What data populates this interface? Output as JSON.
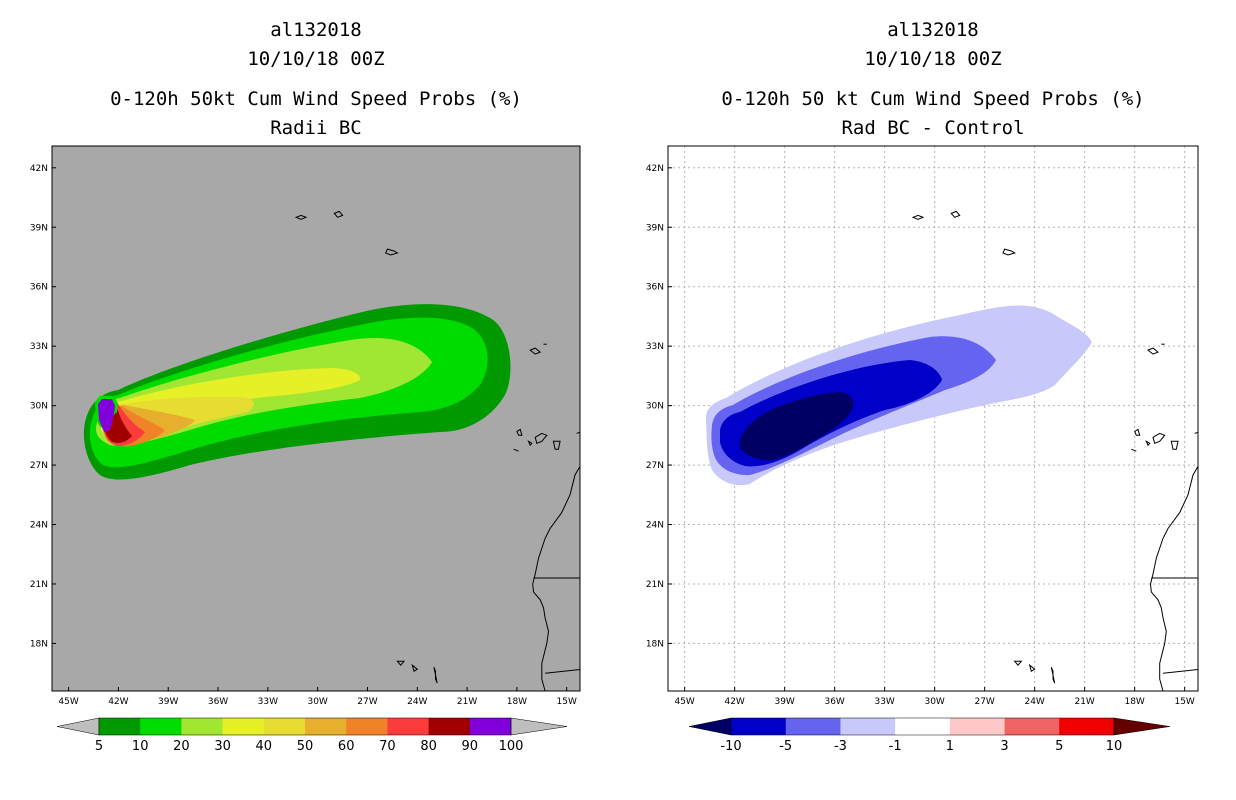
{
  "chart_data": [
    {
      "type": "heatmap",
      "storm_id": "al132018",
      "date": "10/10/18 00Z",
      "title": "0-120h 50kt Cum Wind Speed Probs (%)",
      "subtitle": "Radii BC",
      "units": "%",
      "x_ticks": [
        "45W",
        "42W",
        "39W",
        "36W",
        "33W",
        "30W",
        "27W",
        "24W",
        "21W",
        "18W",
        "15W"
      ],
      "y_ticks": [
        "42N",
        "39N",
        "36N",
        "33N",
        "30N",
        "27N",
        "24N",
        "21N",
        "18N"
      ],
      "colorbar": {
        "levels": [
          "5",
          "10",
          "20",
          "30",
          "40",
          "50",
          "60",
          "70",
          "80",
          "90",
          "100"
        ],
        "colors": [
          "#009a00",
          "#00dc00",
          "#a0e632",
          "#e6f026",
          "#e6dc32",
          "#e6af2d",
          "#f08228",
          "#fa3c3c",
          "#a00000",
          "#8200dc"
        ],
        "under_color": "#bebebe",
        "over_color": "#bebebe"
      },
      "background_color": "#a8a8a8"
    },
    {
      "type": "heatmap",
      "storm_id": "al132018",
      "date": "10/10/18 00Z",
      "title": "0-120h 50 kt Cum Wind Speed Probs (%)",
      "subtitle": "Rad BC - Control",
      "units": "%",
      "x_ticks": [
        "45W",
        "42W",
        "39W",
        "36W",
        "33W",
        "30W",
        "27W",
        "24W",
        "21W",
        "18W",
        "15W"
      ],
      "y_ticks": [
        "42N",
        "39N",
        "36N",
        "33N",
        "30N",
        "27N",
        "24N",
        "21N",
        "18N"
      ],
      "colorbar": {
        "levels": [
          "-10",
          "-5",
          "-3",
          "-1",
          "1",
          "3",
          "5",
          "10"
        ],
        "colors": [
          "#0000c8",
          "#6464f0",
          "#c8c8fa",
          "#ffffff",
          "#ffc8c8",
          "#f06464",
          "#f00000"
        ],
        "under_color": "#000064",
        "over_color": "#640000"
      },
      "background_color": "#ffffff"
    }
  ]
}
